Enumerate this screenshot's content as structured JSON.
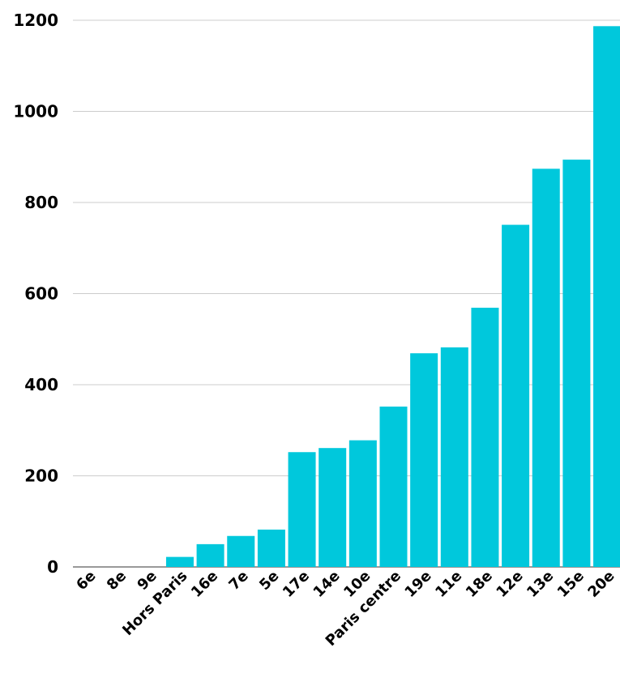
{
  "chart_data": {
    "type": "bar",
    "title": "",
    "xlabel": "",
    "ylabel": "",
    "categories": [
      "6e",
      "8e",
      "9e",
      "Hors Paris",
      "16e",
      "7e",
      "5e",
      "17e",
      "14e",
      "10e",
      "Paris centre",
      "19e",
      "11e",
      "18e",
      "12e",
      "13e",
      "15e",
      "20e"
    ],
    "values": [
      0,
      0,
      0,
      22,
      50,
      68,
      82,
      252,
      261,
      278,
      352,
      469,
      482,
      569,
      751,
      874,
      894,
      1187
    ],
    "ylim": [
      0,
      1200
    ],
    "yticks": [
      0,
      200,
      400,
      600,
      800,
      1000,
      1200
    ],
    "ytick_labels": [
      "0",
      "200",
      "400",
      "600",
      "800",
      "1000",
      "1200"
    ],
    "grid": true,
    "legend": "none",
    "bar_color": "#00c8dc"
  }
}
